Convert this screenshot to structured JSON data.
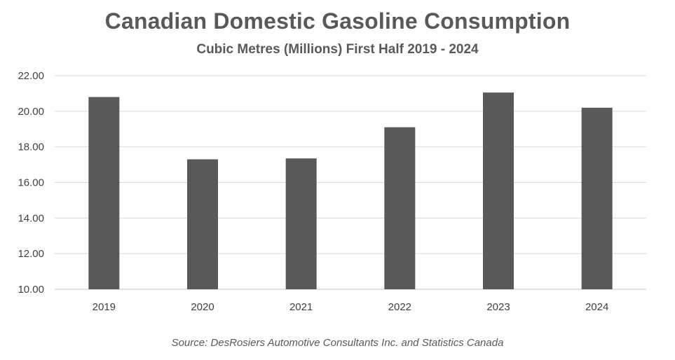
{
  "chart_data": {
    "type": "bar",
    "title": "Canadian Domestic Gasoline Consumption",
    "subtitle": "Cubic Metres (Millions) First Half 2019 - 2024",
    "categories": [
      "2019",
      "2020",
      "2021",
      "2022",
      "2023",
      "2024"
    ],
    "values": [
      20.8,
      17.3,
      17.35,
      19.1,
      21.05,
      20.2
    ],
    "ylim": [
      10,
      22
    ],
    "yticks": [
      "10.00",
      "12.00",
      "14.00",
      "16.00",
      "18.00",
      "20.00",
      "22.00"
    ],
    "xlabel": "",
    "ylabel": "",
    "grid": true,
    "bar_color": "#595959",
    "grid_color": "#d9d9d9",
    "source": "Source: DesRosiers Automotive Consultants Inc. and Statistics Canada"
  }
}
